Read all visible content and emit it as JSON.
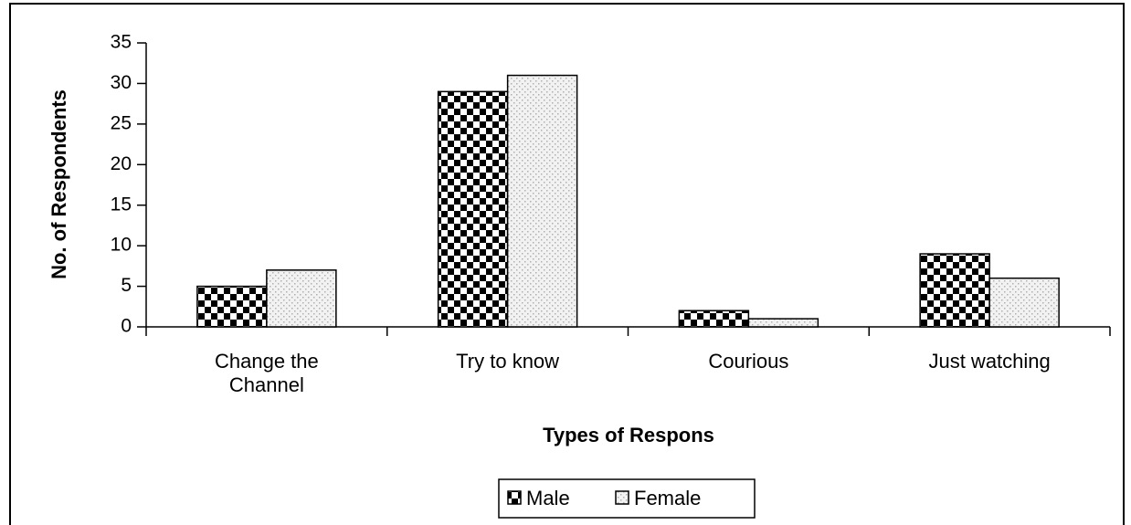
{
  "chart_data": {
    "type": "bar",
    "x_label": "Types of Respons",
    "y_label": "No. of Respondents",
    "categories": [
      "Change the Channel",
      "Try to know",
      "Courious",
      "Just watching"
    ],
    "series": [
      {
        "name": "Male",
        "color": "#000000",
        "values": [
          5,
          29,
          2,
          9
        ]
      },
      {
        "name": "Female",
        "color": "#b0b0b0",
        "values": [
          7,
          31,
          1,
          6
        ]
      }
    ],
    "ylim": [
      0,
      35
    ],
    "yticks": [
      0,
      5,
      10,
      15,
      20,
      25,
      30,
      35
    ],
    "legend": "bottom"
  }
}
